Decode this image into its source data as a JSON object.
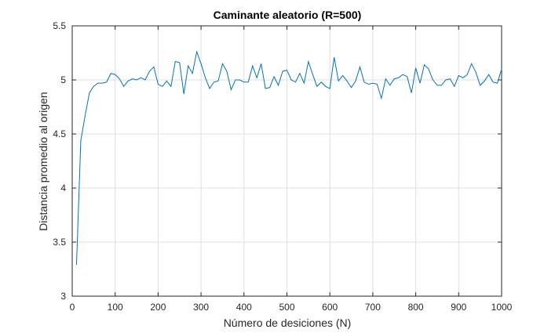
{
  "chart_data": {
    "type": "line",
    "title": "Caminante aleatorio (R=500)",
    "xlabel": "Número de desiciones (N)",
    "ylabel": "Distancia promedio al origen",
    "xlim": [
      0,
      1000
    ],
    "ylim": [
      3,
      5.5
    ],
    "xticks": [
      0,
      100,
      200,
      300,
      400,
      500,
      600,
      700,
      800,
      900,
      1000
    ],
    "xtick_labels": [
      "0",
      "100",
      "200",
      "300",
      "400",
      "500",
      "600",
      "700",
      "800",
      "900",
      "1000"
    ],
    "yticks": [
      3,
      3.5,
      4,
      4.5,
      5,
      5.5
    ],
    "ytick_labels": [
      "3",
      "3.5",
      "4",
      "4.5",
      "5",
      "5.5"
    ],
    "grid": true,
    "series_color": "#0072bd",
    "series": [
      {
        "x": [
          10,
          20,
          30,
          40,
          50,
          60,
          70,
          80,
          90,
          100,
          110,
          120,
          130,
          140,
          150,
          160,
          170,
          180,
          190,
          200,
          210,
          220,
          230,
          240,
          250,
          260,
          270,
          280,
          290,
          300,
          310,
          320,
          330,
          340,
          350,
          360,
          370,
          380,
          390,
          400,
          410,
          420,
          430,
          440,
          450,
          460,
          470,
          480,
          490,
          500,
          510,
          520,
          530,
          540,
          550,
          560,
          570,
          580,
          590,
          600,
          610,
          620,
          630,
          640,
          650,
          660,
          670,
          680,
          690,
          700,
          710,
          720,
          730,
          740,
          750,
          760,
          770,
          780,
          790,
          800,
          810,
          820,
          830,
          840,
          850,
          860,
          870,
          880,
          890,
          900,
          910,
          920,
          930,
          940,
          950,
          960,
          970,
          980,
          990,
          1000
        ],
        "values": [
          3.29,
          4.44,
          4.67,
          4.88,
          4.94,
          4.97,
          4.97,
          4.98,
          5.06,
          5.05,
          5.01,
          4.94,
          4.99,
          5.01,
          5.0,
          5.02,
          5.0,
          5.08,
          5.12,
          4.96,
          4.94,
          4.99,
          4.94,
          5.17,
          5.16,
          4.87,
          5.13,
          5.06,
          5.26,
          5.15,
          5.02,
          4.92,
          4.98,
          4.99,
          5.15,
          5.08,
          4.91,
          5.0,
          5.0,
          4.98,
          4.98,
          5.13,
          5.02,
          5.15,
          4.92,
          4.93,
          5.03,
          4.95,
          5.08,
          5.09,
          5.0,
          4.98,
          5.06,
          4.97,
          5.17,
          5.05,
          4.94,
          4.98,
          4.94,
          4.92,
          5.21,
          4.99,
          5.04,
          4.99,
          4.93,
          4.99,
          5.12,
          4.98,
          4.96,
          4.97,
          4.96,
          4.83,
          5.01,
          4.95,
          5.01,
          5.02,
          5.05,
          5.03,
          4.88,
          5.11,
          4.97,
          5.14,
          5.1,
          5.0,
          4.95,
          4.95,
          5.0,
          5.01,
          4.94,
          5.04,
          5.02,
          5.05,
          5.15,
          5.07,
          4.95,
          4.99,
          5.05,
          4.98,
          4.97,
          5.1
        ]
      }
    ]
  }
}
